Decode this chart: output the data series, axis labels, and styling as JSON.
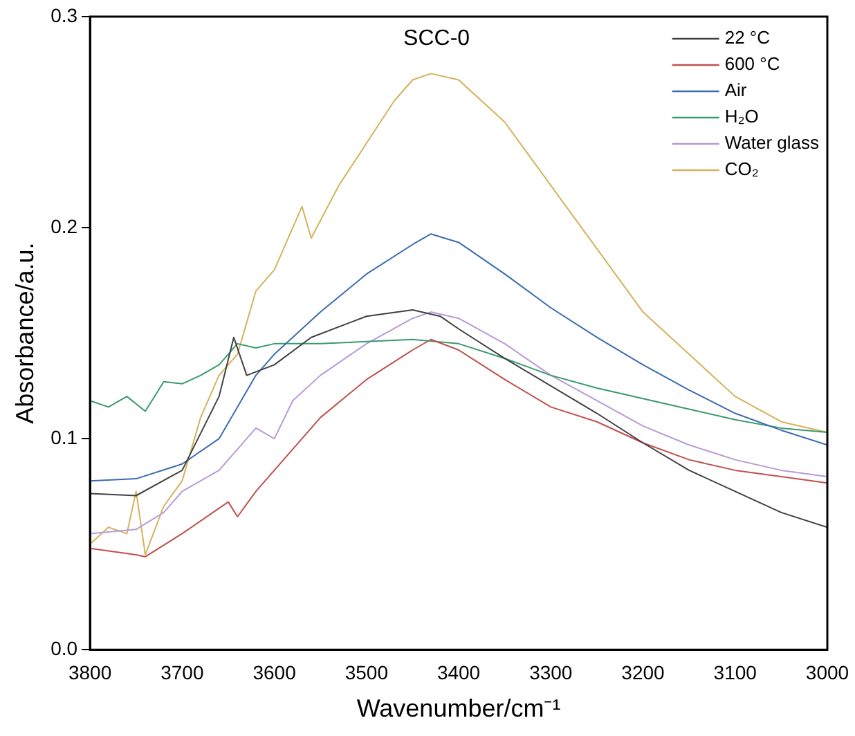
{
  "chart_data": {
    "type": "line",
    "title": "SCC-0",
    "xlabel": "Wavenumber/cm⁻¹",
    "ylabel": "Absorbance/a.u.",
    "xlim": [
      3800,
      3000
    ],
    "xticks": [
      3800,
      3700,
      3600,
      3500,
      3400,
      3300,
      3200,
      3100,
      3000
    ],
    "ylim": [
      0,
      0.3
    ],
    "yticks": [
      {
        "value": 0,
        "label": "0.0"
      },
      {
        "value": 0.1,
        "label": "0.1"
      },
      {
        "value": 0.2,
        "label": "0.2"
      },
      {
        "value": 0.3,
        "label": "0.3"
      }
    ],
    "grid": false,
    "legend": "top right",
    "marker": "none",
    "line_style": "solid",
    "series": [
      {
        "name": "22 °C",
        "color": "#404040",
        "x": [
          3800,
          3750,
          3700,
          3660,
          3644,
          3630,
          3600,
          3560,
          3500,
          3450,
          3420,
          3400,
          3350,
          3300,
          3250,
          3200,
          3150,
          3100,
          3050,
          3000
        ],
        "values": [
          0.074,
          0.073,
          0.085,
          0.12,
          0.148,
          0.13,
          0.135,
          0.148,
          0.158,
          0.161,
          0.158,
          0.152,
          0.138,
          0.125,
          0.112,
          0.098,
          0.085,
          0.075,
          0.065,
          0.058
        ]
      },
      {
        "name": "600 °C",
        "color": "#c0504d",
        "x": [
          3800,
          3750,
          3740,
          3700,
          3650,
          3640,
          3620,
          3600,
          3550,
          3500,
          3450,
          3430,
          3400,
          3350,
          3300,
          3250,
          3200,
          3150,
          3100,
          3050,
          3000
        ],
        "values": [
          0.048,
          0.045,
          0.044,
          0.055,
          0.07,
          0.063,
          0.075,
          0.085,
          0.11,
          0.128,
          0.142,
          0.147,
          0.142,
          0.128,
          0.115,
          0.108,
          0.098,
          0.09,
          0.085,
          0.082,
          0.079
        ]
      },
      {
        "name": "Air",
        "color": "#3a6bb0",
        "x": [
          3800,
          3750,
          3700,
          3660,
          3620,
          3600,
          3550,
          3500,
          3450,
          3430,
          3400,
          3350,
          3300,
          3250,
          3200,
          3150,
          3100,
          3050,
          3000
        ],
        "values": [
          0.08,
          0.081,
          0.088,
          0.1,
          0.13,
          0.14,
          0.16,
          0.178,
          0.192,
          0.197,
          0.193,
          0.178,
          0.162,
          0.148,
          0.135,
          0.123,
          0.112,
          0.104,
          0.097
        ]
      },
      {
        "name": "H₂O",
        "color": "#3a9a6c",
        "x": [
          3800,
          3780,
          3760,
          3740,
          3720,
          3700,
          3680,
          3660,
          3640,
          3620,
          3600,
          3550,
          3500,
          3450,
          3400,
          3350,
          3300,
          3250,
          3200,
          3150,
          3100,
          3050,
          3000
        ],
        "values": [
          0.118,
          0.115,
          0.12,
          0.113,
          0.127,
          0.126,
          0.13,
          0.135,
          0.145,
          0.143,
          0.145,
          0.145,
          0.146,
          0.147,
          0.145,
          0.138,
          0.13,
          0.124,
          0.119,
          0.114,
          0.109,
          0.105,
          0.103
        ]
      },
      {
        "name": "Water glass",
        "color": "#b89ad8",
        "x": [
          3800,
          3750,
          3720,
          3700,
          3660,
          3640,
          3620,
          3600,
          3580,
          3550,
          3500,
          3450,
          3430,
          3400,
          3350,
          3300,
          3250,
          3200,
          3150,
          3100,
          3050,
          3000
        ],
        "values": [
          0.055,
          0.057,
          0.065,
          0.075,
          0.085,
          0.095,
          0.105,
          0.1,
          0.118,
          0.13,
          0.145,
          0.157,
          0.16,
          0.157,
          0.145,
          0.13,
          0.118,
          0.106,
          0.097,
          0.09,
          0.085,
          0.082
        ]
      },
      {
        "name": "CO₂",
        "color": "#d4b25a",
        "x": [
          3800,
          3780,
          3760,
          3750,
          3740,
          3720,
          3700,
          3680,
          3660,
          3640,
          3620,
          3600,
          3580,
          3570,
          3560,
          3530,
          3500,
          3470,
          3450,
          3430,
          3400,
          3350,
          3300,
          3250,
          3200,
          3150,
          3100,
          3050,
          3000
        ],
        "values": [
          0.05,
          0.058,
          0.055,
          0.075,
          0.045,
          0.068,
          0.08,
          0.11,
          0.13,
          0.14,
          0.17,
          0.18,
          0.2,
          0.21,
          0.195,
          0.22,
          0.24,
          0.26,
          0.27,
          0.273,
          0.27,
          0.25,
          0.22,
          0.19,
          0.16,
          0.14,
          0.12,
          0.108,
          0.103
        ]
      }
    ]
  }
}
